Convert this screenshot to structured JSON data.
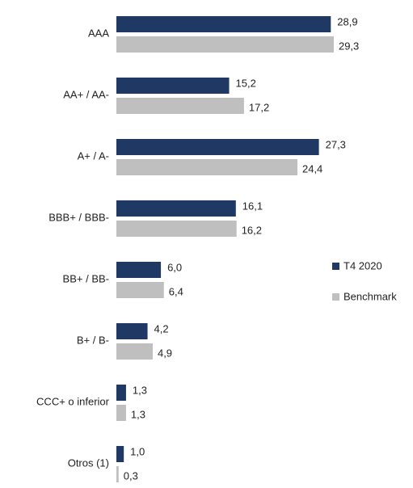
{
  "chart_data": {
    "type": "barh",
    "categories": [
      "AAA",
      "AA+ / AA-",
      "A+ / A-",
      "BBB+ / BBB-",
      "BB+ / BB-",
      "B+ / B-",
      "CCC+ o inferior",
      "Otros (1)"
    ],
    "series": [
      {
        "name": "T4 2020",
        "color": "#1f3864",
        "values": [
          28.9,
          15.2,
          27.3,
          16.1,
          6.0,
          4.2,
          1.3,
          1.0
        ],
        "value_labels": [
          "28,9",
          "15,2",
          "27,3",
          "16,1",
          "6,0",
          "4,2",
          "1,3",
          "1,0"
        ]
      },
      {
        "name": "Benchmark",
        "color": "#bfbfbf",
        "values": [
          29.3,
          17.2,
          24.4,
          16.2,
          6.4,
          4.9,
          1.3,
          0.3
        ],
        "value_labels": [
          "29,3",
          "17,2",
          "24,4",
          "16,2",
          "6,4",
          "4,9",
          "1,3",
          "0,3"
        ]
      }
    ],
    "legend": "right"
  }
}
